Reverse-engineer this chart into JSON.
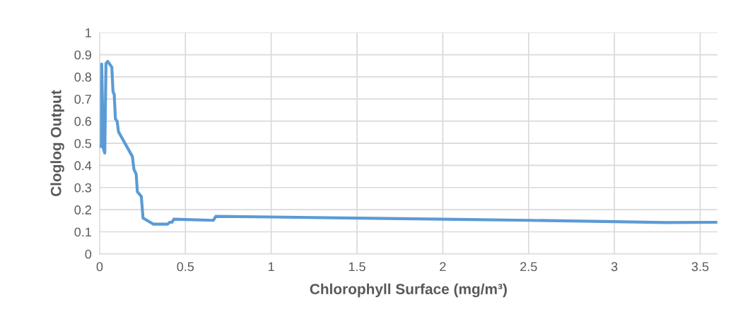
{
  "chart_data": {
    "type": "line",
    "xlabel": "Chlorophyll Surface (mg/m³)",
    "ylabel": "Cloglog Output",
    "series": [
      {
        "color": "#5b9bd5",
        "x": [
          0,
          0.01,
          0.012,
          0.021,
          0.03,
          0.037,
          0.047,
          0.071,
          0.078,
          0.085,
          0.092,
          0.102,
          0.11,
          0.191,
          0.2,
          0.213,
          0.22,
          0.243,
          0.253,
          0.312,
          0.397,
          0.408,
          0.422,
          0.432,
          0.663,
          0.677,
          1.0,
          1.5,
          2.0,
          2.5,
          3.0,
          3.3,
          3.6
        ],
        "values": [
          0.486,
          0.486,
          0.858,
          0.478,
          0.456,
          0.86,
          0.87,
          0.844,
          0.732,
          0.722,
          0.61,
          0.6,
          0.552,
          0.44,
          0.382,
          0.361,
          0.281,
          0.26,
          0.162,
          0.135,
          0.135,
          0.143,
          0.143,
          0.157,
          0.152,
          0.17,
          0.167,
          0.162,
          0.157,
          0.152,
          0.146,
          0.142,
          0.143
        ]
      }
    ],
    "xlim": [
      0,
      3.6
    ],
    "xticks": [
      0,
      {
        "value": 0.5,
        "label": "0.5"
      },
      1,
      {
        "value": 1.5,
        "label": "1.5"
      },
      2,
      {
        "value": 2.5,
        "label": "2.5"
      },
      3,
      {
        "value": 3.5,
        "label": "3.5"
      }
    ],
    "ylim": [
      0,
      1
    ],
    "yticks": [
      0,
      0.1,
      0.2,
      0.3,
      0.4,
      0.5,
      0.6,
      0.7,
      0.8,
      0.9,
      1
    ],
    "grid": true,
    "marker": "none",
    "line_style": "solid"
  }
}
